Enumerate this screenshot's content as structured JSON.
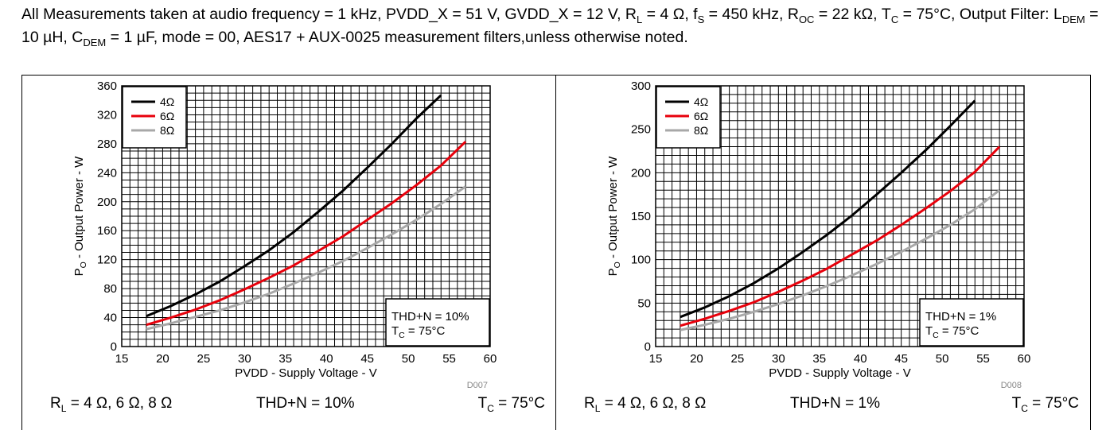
{
  "conditions": {
    "p1": "All Measurements taken at audio frequency = 1 kHz, PVDD_X = 51 V, GVDD_X = 12 V, R",
    "p1_sub": "L",
    "p2": " = 4 Ω, f",
    "p2_sub": "S",
    "p3": " = 450 kHz, R",
    "p3_sub": "OC",
    "p4": " = 22 kΩ, T",
    "p4_sub": "C",
    "p5": " = 75°C, Output Filter: L",
    "p5_sub": "DEM",
    "p6": " = 10 µH, C",
    "p6_sub": "DEM",
    "p7": " = 1 µF, mode = 00, AES17 + AUX-0025 measurement filters,unless otherwise noted."
  },
  "colors": {
    "series_4ohm": "#000000",
    "series_6ohm": "#e8000b",
    "series_8ohm": "#a8a8a8",
    "grid": "#000000"
  },
  "chart_data": [
    {
      "type": "line",
      "id": "D007",
      "ylabel_main": "P",
      "ylabel_sub": "O",
      "ylabel_rest": " - Output Power - W",
      "xlabel": "PVDD - Supply Voltage - V",
      "xlim": [
        15,
        60
      ],
      "ylim": [
        0,
        360
      ],
      "xticks": [
        15,
        20,
        25,
        30,
        35,
        40,
        45,
        50,
        55,
        60
      ],
      "yticks": [
        0,
        40,
        80,
        120,
        160,
        200,
        240,
        280,
        320,
        360
      ],
      "grid": true,
      "minor_x_step": 1,
      "minor_y_step": 10,
      "legend_position": "top-left",
      "annotation_line1": "THD+N = 10%",
      "annotation_line2_main": "T",
      "annotation_line2_sub": "C",
      "annotation_line2_rest": " = 75°C",
      "series": [
        {
          "name": "4Ω",
          "color": "#000000",
          "x": [
            18,
            21,
            24,
            27,
            30,
            33,
            36,
            39,
            42,
            45,
            48,
            51,
            54
          ],
          "y": [
            42,
            56,
            72,
            90,
            111,
            133,
            158,
            186,
            215,
            247,
            280,
            315,
            347
          ]
        },
        {
          "name": "6Ω",
          "color": "#e8000b",
          "x": [
            18,
            21,
            24,
            27,
            30,
            33,
            36,
            39,
            42,
            45,
            48,
            51,
            54,
            57
          ],
          "y": [
            30,
            40,
            51,
            64,
            79,
            95,
            112,
            132,
            152,
            175,
            198,
            223,
            250,
            283
          ]
        },
        {
          "name": "8Ω",
          "color": "#a8a8a8",
          "x": [
            18,
            21,
            24,
            27,
            30,
            33,
            36,
            39,
            42,
            45,
            48,
            51,
            54,
            57
          ],
          "y": [
            24,
            32,
            41,
            50,
            61,
            73,
            87,
            102,
            118,
            136,
            155,
            175,
            197,
            221
          ]
        }
      ]
    },
    {
      "type": "line",
      "id": "D008",
      "ylabel_main": "P",
      "ylabel_sub": "O",
      "ylabel_rest": " - Output Power - W",
      "xlabel": "PVDD - Supply Voltage - V",
      "xlim": [
        15,
        60
      ],
      "ylim": [
        0,
        300
      ],
      "xticks": [
        15,
        20,
        25,
        30,
        35,
        40,
        45,
        50,
        55,
        60
      ],
      "yticks": [
        0,
        50,
        100,
        150,
        200,
        250,
        300
      ],
      "grid": true,
      "minor_x_step": 1,
      "minor_y_step": 10,
      "legend_position": "top-left",
      "annotation_line1": "THD+N = 1%",
      "annotation_line2_main": "T",
      "annotation_line2_sub": "C",
      "annotation_line2_rest": " = 75°C",
      "series": [
        {
          "name": "4Ω",
          "color": "#000000",
          "x": [
            18,
            21,
            24,
            27,
            30,
            33,
            36,
            39,
            42,
            45,
            48,
            51,
            54
          ],
          "y": [
            34,
            45,
            58,
            73,
            90,
            109,
            129,
            151,
            175,
            200,
            226,
            254,
            283
          ]
        },
        {
          "name": "6Ω",
          "color": "#e8000b",
          "x": [
            18,
            21,
            24,
            27,
            30,
            33,
            36,
            39,
            42,
            45,
            48,
            51,
            54,
            57
          ],
          "y": [
            24,
            32,
            41,
            51,
            63,
            76,
            90,
            106,
            122,
            140,
            159,
            179,
            201,
            230
          ]
        },
        {
          "name": "8Ω",
          "color": "#a8a8a8",
          "x": [
            18,
            21,
            24,
            27,
            30,
            33,
            36,
            39,
            42,
            45,
            48,
            51,
            54,
            57
          ],
          "y": [
            19,
            25,
            32,
            40,
            49,
            59,
            70,
            82,
            95,
            109,
            124,
            140,
            158,
            180
          ]
        }
      ]
    }
  ],
  "captions": [
    {
      "rl_main": "R",
      "rl_sub": "L",
      "rl_rest": " = 4 Ω, 6 Ω, 8 Ω",
      "thd": "THD+N = 10%",
      "tc_main": "T",
      "tc_sub": "C",
      "tc_rest": " = 75°C"
    },
    {
      "rl_main": "R",
      "rl_sub": "L",
      "rl_rest": " = 4 Ω, 6 Ω, 8 Ω",
      "thd": "THD+N = 1%",
      "tc_main": "T",
      "tc_sub": "C",
      "tc_rest": " = 75°C"
    }
  ]
}
